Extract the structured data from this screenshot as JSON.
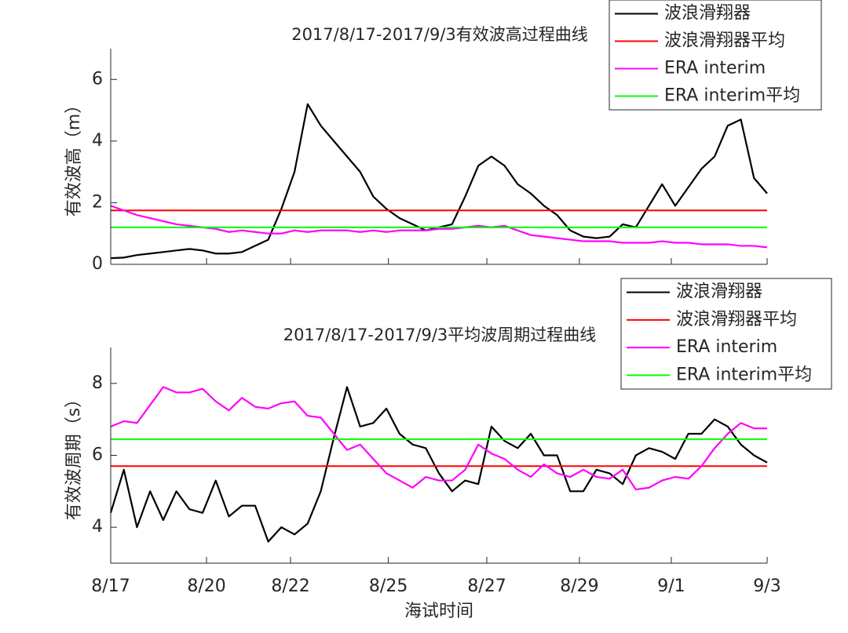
{
  "chart_data": [
    {
      "type": "line",
      "title": "2017/8/17-2017/9/3有效波高过程曲线",
      "ylabel": "有效波高（m）",
      "xlim": [
        0,
        1000
      ],
      "ylim": [
        0,
        7
      ],
      "yticks": [
        0,
        2,
        4,
        6
      ],
      "xticks": [
        0,
        146,
        274,
        423,
        573,
        714,
        854,
        1000
      ],
      "x": [
        0,
        20,
        40,
        60,
        80,
        100,
        120,
        140,
        160,
        180,
        200,
        220,
        240,
        260,
        280,
        300,
        320,
        340,
        360,
        380,
        400,
        420,
        440,
        460,
        480,
        500,
        520,
        540,
        560,
        580,
        600,
        620,
        640,
        660,
        680,
        700,
        720,
        740,
        760,
        780,
        800,
        820,
        840,
        860,
        880,
        900,
        920,
        940,
        960,
        980,
        1000
      ],
      "legend": "upper right",
      "series": [
        {
          "name": "波浪滑翔器",
          "color": "#000000",
          "values": [
            0.2,
            0.22,
            0.3,
            0.35,
            0.4,
            0.45,
            0.5,
            0.45,
            0.35,
            0.35,
            0.4,
            0.6,
            0.8,
            1.8,
            3.0,
            5.2,
            4.5,
            4.0,
            3.5,
            3.0,
            2.2,
            1.8,
            1.5,
            1.3,
            1.1,
            1.2,
            1.3,
            2.2,
            3.2,
            3.5,
            3.2,
            2.6,
            2.3,
            1.9,
            1.6,
            1.1,
            0.9,
            0.85,
            0.9,
            1.3,
            1.2,
            1.9,
            2.6,
            1.9,
            2.5,
            3.1,
            3.5,
            4.5,
            4.7,
            2.8,
            2.3
          ]
        },
        {
          "name": "波浪滑翔器平均",
          "color": "#ff0000",
          "value": 1.75
        },
        {
          "name": "ERA interim",
          "color": "#ff00ff",
          "values": [
            1.9,
            1.75,
            1.6,
            1.5,
            1.4,
            1.3,
            1.25,
            1.2,
            1.15,
            1.05,
            1.1,
            1.05,
            1.0,
            1.0,
            1.1,
            1.05,
            1.1,
            1.1,
            1.1,
            1.05,
            1.1,
            1.05,
            1.1,
            1.1,
            1.1,
            1.15,
            1.15,
            1.2,
            1.25,
            1.2,
            1.25,
            1.1,
            0.95,
            0.9,
            0.85,
            0.8,
            0.75,
            0.75,
            0.75,
            0.7,
            0.7,
            0.7,
            0.75,
            0.7,
            0.7,
            0.65,
            0.65,
            0.65,
            0.6,
            0.6,
            0.55
          ]
        },
        {
          "name": "ERA interim平均",
          "color": "#00ff00",
          "value": 1.2
        }
      ]
    },
    {
      "type": "line",
      "title": "2017/8/17-2017/9/3平均波周期过程曲线",
      "ylabel": "有效波周期（s）",
      "xlabel": "海试时间",
      "xlim": [
        0,
        1000
      ],
      "ylim": [
        3,
        9
      ],
      "yticks": [
        4,
        6,
        8
      ],
      "xticks": [
        {
          "value": 0,
          "label": "8/17"
        },
        {
          "value": 146,
          "label": "8/20"
        },
        {
          "value": 274,
          "label": "8/22"
        },
        {
          "value": 423,
          "label": "8/25"
        },
        {
          "value": 573,
          "label": "8/27"
        },
        {
          "value": 714,
          "label": "8/29"
        },
        {
          "value": 854,
          "label": "9/1"
        },
        {
          "value": 1000,
          "label": "9/3"
        }
      ],
      "x": [
        0,
        20,
        40,
        60,
        80,
        100,
        120,
        140,
        160,
        180,
        200,
        220,
        240,
        260,
        280,
        300,
        320,
        340,
        360,
        380,
        400,
        420,
        440,
        460,
        480,
        500,
        520,
        540,
        560,
        580,
        600,
        620,
        640,
        660,
        680,
        700,
        720,
        740,
        760,
        780,
        800,
        820,
        840,
        860,
        880,
        900,
        920,
        940,
        960,
        980,
        1000
      ],
      "legend": "upper right",
      "series": [
        {
          "name": "波浪滑翔器",
          "color": "#000000",
          "values": [
            4.4,
            5.6,
            4.0,
            5.0,
            4.2,
            5.0,
            4.5,
            4.4,
            5.3,
            4.3,
            4.6,
            4.6,
            3.6,
            4.0,
            3.8,
            4.1,
            5.0,
            6.5,
            7.9,
            6.8,
            6.9,
            7.3,
            6.6,
            6.3,
            6.2,
            5.5,
            5.0,
            5.3,
            5.2,
            6.8,
            6.4,
            6.2,
            6.6,
            6.0,
            6.0,
            5.0,
            5.0,
            5.6,
            5.5,
            5.2,
            6.0,
            6.2,
            6.1,
            5.9,
            6.6,
            6.6,
            7.0,
            6.8,
            6.3,
            6.0,
            5.8
          ]
        },
        {
          "name": "波浪滑翔器平均",
          "color": "#ff0000",
          "value": 5.7
        },
        {
          "name": "ERA interim",
          "color": "#ff00ff",
          "values": [
            6.8,
            6.95,
            6.9,
            7.4,
            7.9,
            7.75,
            7.75,
            7.85,
            7.5,
            7.25,
            7.6,
            7.35,
            7.3,
            7.45,
            7.5,
            7.1,
            7.05,
            6.6,
            6.15,
            6.3,
            5.9,
            5.5,
            5.3,
            5.1,
            5.4,
            5.3,
            5.3,
            5.6,
            6.3,
            6.05,
            5.9,
            5.6,
            5.4,
            5.75,
            5.5,
            5.4,
            5.6,
            5.4,
            5.35,
            5.6,
            5.05,
            5.1,
            5.3,
            5.4,
            5.35,
            5.7,
            6.2,
            6.6,
            6.9,
            6.75,
            6.75
          ]
        },
        {
          "name": "ERA interim平均",
          "color": "#00ff00",
          "value": 6.45
        }
      ]
    }
  ]
}
